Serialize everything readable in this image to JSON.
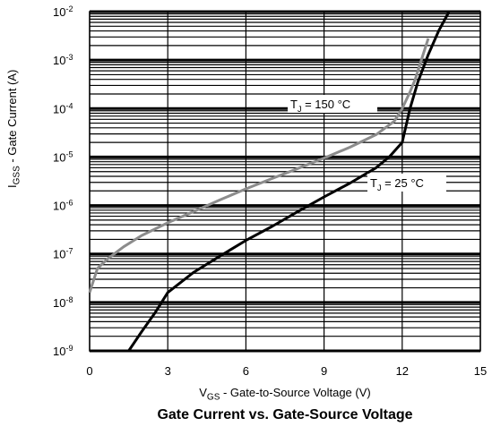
{
  "chart_data": {
    "type": "line",
    "title": "Gate Current vs. Gate-Source Voltage",
    "xlabel": {
      "symbol": "V",
      "subscript": "GS",
      "text": " - Gate-to-Source Voltage (V)"
    },
    "ylabel": {
      "symbol": "I",
      "subscript": "GSS",
      "text": " - Gate Current (A)"
    },
    "xlim": [
      0,
      15
    ],
    "ylim": [
      1e-09,
      0.01
    ],
    "yscale": "log",
    "x_ticks": [
      "0",
      "3",
      "6",
      "9",
      "12",
      "15"
    ],
    "y_ticks": [
      "10-9",
      "10-8",
      "10-7",
      "10-6",
      "10-5",
      "10-4",
      "10-3",
      "10-2"
    ],
    "grid": true,
    "series": [
      {
        "name": "TJ = 150 °C",
        "label": {
          "symbol": "T",
          "subscript": "J",
          "text": " = 150 °C"
        },
        "color": "#8c8c8c",
        "x": [
          0,
          0.3,
          0.7,
          1.3,
          2,
          3,
          4,
          5,
          6,
          7,
          8,
          9,
          10,
          11,
          11.7,
          12,
          12.3,
          12.5,
          12.8,
          13
        ],
        "y": [
          1.6e-08,
          5e-08,
          8e-08,
          1.4e-07,
          2.4e-07,
          4.4e-07,
          7.5e-07,
          1.3e-06,
          2.2e-06,
          3.6e-06,
          5.8e-06,
          9.5e-06,
          1.6e-05,
          2.9e-05,
          5.5e-05,
          0.0001,
          0.00022,
          0.0004,
          0.0013,
          0.0028
        ]
      },
      {
        "name": "TJ = 25 °C",
        "label": {
          "symbol": "T",
          "subscript": "J",
          "text": " = 25 °C"
        },
        "color": "#000000",
        "x": [
          1.5,
          2,
          2.5,
          3,
          4,
          5,
          6,
          7,
          8,
          9,
          10,
          11,
          11.5,
          12,
          12.3,
          12.6,
          13,
          13.4,
          13.8
        ],
        "y": [
          1e-09,
          2.5e-09,
          6e-09,
          1.6e-08,
          4.2e-08,
          9e-08,
          1.9e-07,
          3.7e-07,
          7.5e-07,
          1.5e-06,
          2.9e-06,
          6e-06,
          1e-05,
          2e-05,
          0.0001,
          0.00035,
          0.0013,
          0.004,
          0.01
        ]
      }
    ]
  }
}
